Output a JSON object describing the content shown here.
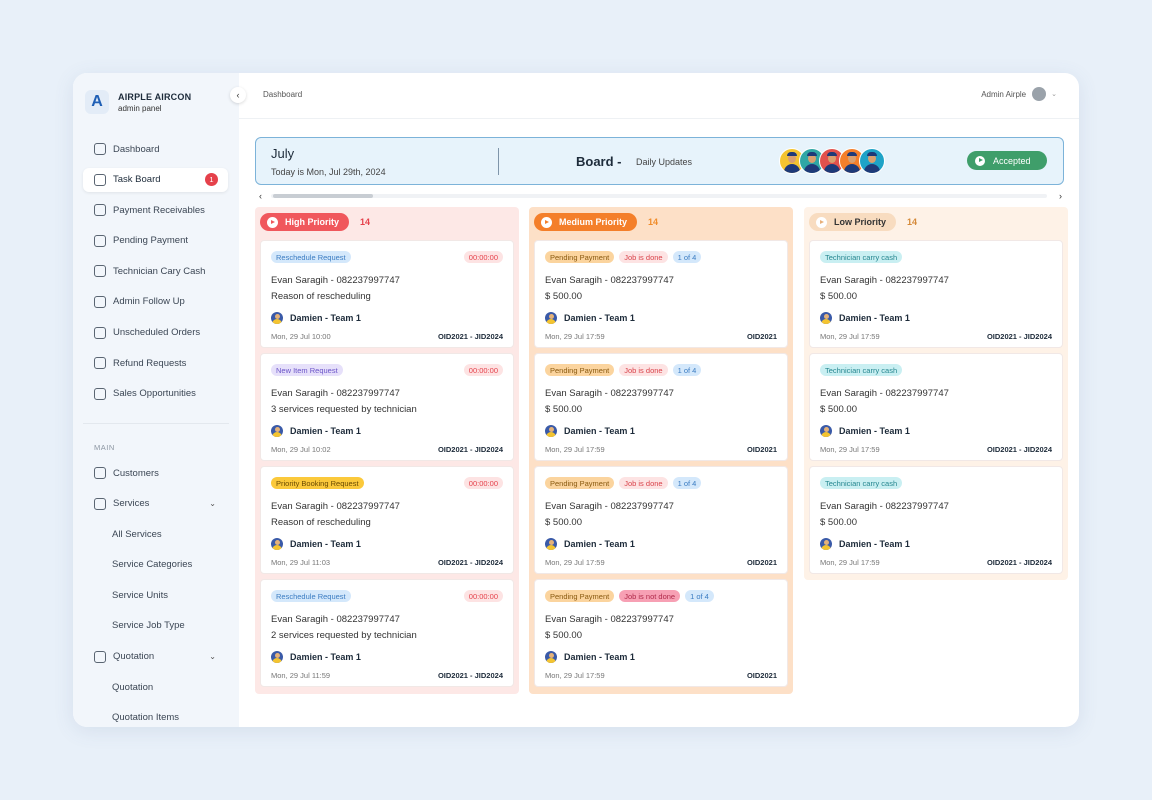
{
  "brand": {
    "title": "AIRPLE AIRCON",
    "subtitle": "admin panel",
    "logo_letter": "A"
  },
  "sidebar": {
    "items": [
      {
        "label": "Dashboard"
      },
      {
        "label": "Task Board",
        "badge": "1",
        "active": true
      },
      {
        "label": "Payment Receivables"
      },
      {
        "label": "Pending Payment"
      },
      {
        "label": "Technician Cary Cash"
      },
      {
        "label": "Admin Follow Up"
      },
      {
        "label": "Unscheduled Orders"
      },
      {
        "label": "Refund Requests"
      },
      {
        "label": "Sales Opportunities"
      }
    ],
    "section_label": "MAIN",
    "main_items": [
      {
        "label": "Customers"
      },
      {
        "label": "Services",
        "expandable": true
      },
      {
        "label": "All Services",
        "sub": true
      },
      {
        "label": "Service Categories",
        "sub": true
      },
      {
        "label": "Service Units",
        "sub": true
      },
      {
        "label": "Service Job Type",
        "sub": true
      },
      {
        "label": "Quotation",
        "expandable": true
      },
      {
        "label": "Quotation",
        "sub": true
      },
      {
        "label": "Quotation Items",
        "sub": true
      }
    ]
  },
  "topbar": {
    "breadcrumb": "Dashboard",
    "user_name": "Admin Airple"
  },
  "header": {
    "month": "July",
    "today": "Today is Mon, Jul 29th, 2024",
    "board_title": "Board -",
    "board_sub": "Daily Updates",
    "status": "Accepted",
    "avatar_colors": [
      "#f4c430",
      "#2fa7a5",
      "#e2524c",
      "#f47f2a",
      "#1fa3c7"
    ]
  },
  "columns": {
    "high": {
      "label": "High Priority",
      "count": "14",
      "cards": [
        {
          "tag": "Reschedule Request",
          "tag_bg": "#d4e8fb",
          "tag_color": "#3b7cc2",
          "timer": "00:00:00",
          "line1": "Evan Saragih - 082237997747",
          "line2": "Reason of rescheduling",
          "assignee": "Damien - Team 1",
          "date": "Mon, 29 Jul 10:00",
          "ids": "OID2021 - JID2024"
        },
        {
          "tag": "New Item Request",
          "tag_bg": "#e6e0fa",
          "tag_color": "#6b54c8",
          "timer": "00:00:00",
          "line1": "Evan Saragih - 082237997747",
          "line2": "3 services requested by technician",
          "assignee": "Damien - Team 1",
          "date": "Mon, 29 Jul 10:02",
          "ids": "OID2021 - JID2024"
        },
        {
          "tag": "Priority Booking Request",
          "tag_bg": "#fbc93b",
          "tag_color": "#6b4a00",
          "timer": "00:00:00",
          "line1": "Evan Saragih - 082237997747",
          "line2": "Reason of rescheduling",
          "assignee": "Damien - Team 1",
          "date": "Mon, 29 Jul 11:03",
          "ids": "OID2021 - JID2024"
        },
        {
          "tag": "Reschedule Request",
          "tag_bg": "#d4e8fb",
          "tag_color": "#3b7cc2",
          "timer": "00:00:00",
          "line1": "Evan Saragih - 082237997747",
          "line2": "2 services requested by technician",
          "assignee": "Damien - Team 1",
          "date": "Mon, 29 Jul 11:59",
          "ids": "OID2021 - JID2024"
        }
      ]
    },
    "medium": {
      "label": "Medium Priority",
      "count": "14",
      "cards": [
        {
          "tag": "Pending Payment",
          "status": "Job is done",
          "status_bg": "#fde3e3",
          "status_color": "#d9434b",
          "progress": "1 of 4",
          "line1": "Evan Saragih - 082237997747",
          "line2": "$ 500.00",
          "assignee": "Damien - Team 1",
          "date": "Mon, 29 Jul 17:59",
          "ids": "OID2021"
        },
        {
          "tag": "Pending Payment",
          "status": "Job is done",
          "status_bg": "#fde3e3",
          "status_color": "#d9434b",
          "progress": "1 of 4",
          "line1": "Evan Saragih - 082237997747",
          "line2": "$ 500.00",
          "assignee": "Damien - Team 1",
          "date": "Mon, 29 Jul 17:59",
          "ids": "OID2021"
        },
        {
          "tag": "Pending Payment",
          "status": "Job is done",
          "status_bg": "#fde3e3",
          "status_color": "#d9434b",
          "progress": "1 of 4",
          "line1": "Evan Saragih - 082237997747",
          "line2": "$ 500.00",
          "assignee": "Damien - Team 1",
          "date": "Mon, 29 Jul 17:59",
          "ids": "OID2021"
        },
        {
          "tag": "Pending Payment",
          "status": "Job is not done",
          "status_bg": "#f7a0b4",
          "status_color": "#b0294a",
          "progress": "1 of 4",
          "line1": "Evan Saragih - 082237997747",
          "line2": "$ 500.00",
          "assignee": "Damien - Team 1",
          "date": "Mon, 29 Jul 17:59",
          "ids": "OID2021"
        }
      ]
    },
    "low": {
      "label": "Low Priority",
      "count": "14",
      "cards": [
        {
          "tag": "Technician carry cash",
          "line1": "Evan Saragih - 082237997747",
          "line2": "$ 500.00",
          "assignee": "Damien - Team 1",
          "date": "Mon, 29 Jul 17:59",
          "ids": "OID2021 - JID2024"
        },
        {
          "tag": "Technician carry cash",
          "line1": "Evan Saragih - 082237997747",
          "line2": "$ 500.00",
          "assignee": "Damien - Team 1",
          "date": "Mon, 29 Jul 17:59",
          "ids": "OID2021 - JID2024"
        },
        {
          "tag": "Technician carry cash",
          "line1": "Evan Saragih - 082237997747",
          "line2": "$ 500.00",
          "assignee": "Damien - Team 1",
          "date": "Mon, 29 Jul 17:59",
          "ids": "OID2021 - JID2024"
        }
      ]
    }
  },
  "colors": {
    "high": "#f0575c",
    "medium": "#f47f2a",
    "low": "#f8dcc0",
    "accepted": "#3f9e6a",
    "pending_payment_tag_bg": "#fbd49e",
    "pending_payment_tag_color": "#8a5a10",
    "progress_tag_bg": "#d4e8fb",
    "progress_tag_color": "#3b7cc2",
    "carry_cash_tag_bg": "#c9eff2",
    "carry_cash_tag_color": "#25868f"
  }
}
